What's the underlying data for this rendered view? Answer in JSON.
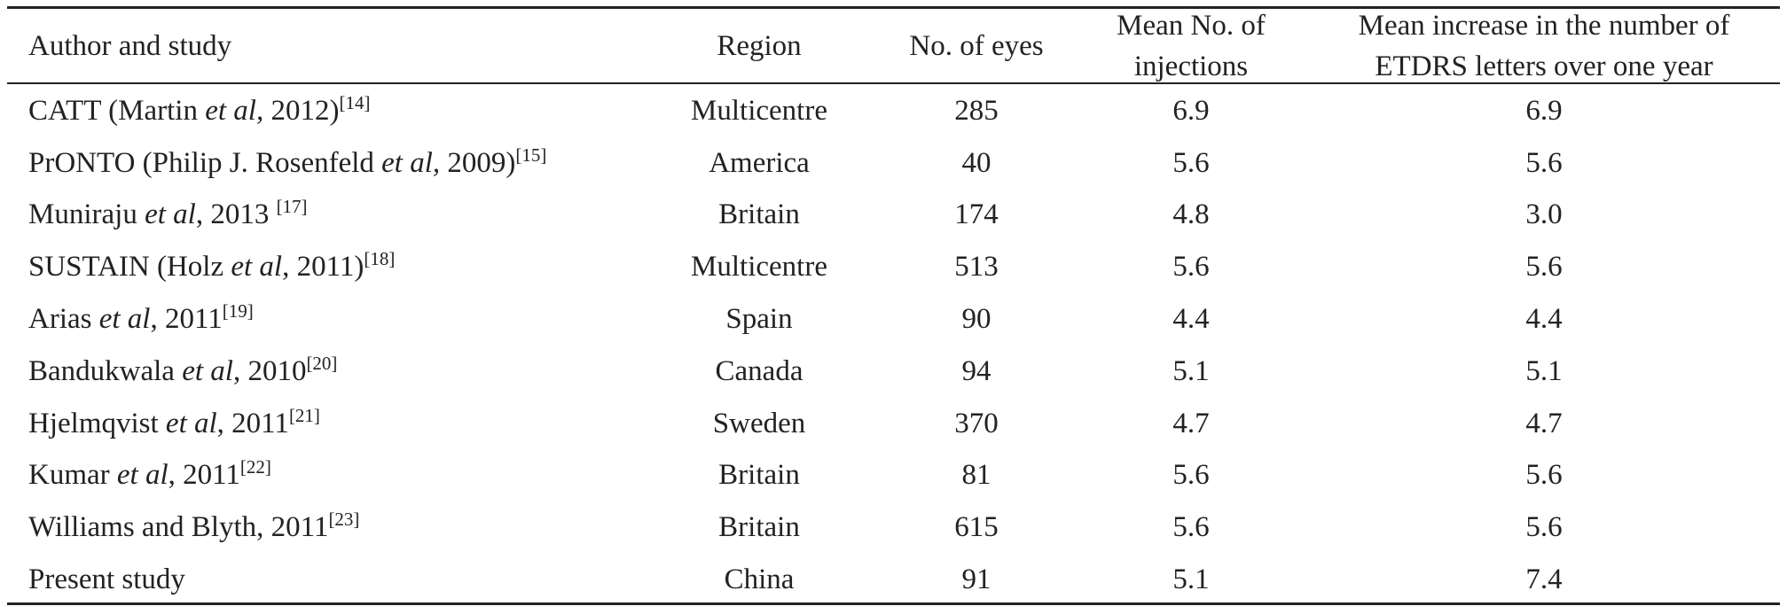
{
  "table": {
    "header": [
      [
        "Author and study"
      ],
      [
        "Region"
      ],
      [
        "No. of eyes"
      ],
      [
        "Mean No. of",
        "injections"
      ],
      [
        "Mean increase in the number of",
        "ETDRS letters over one year"
      ]
    ],
    "rows": [
      {
        "author": [
          "CATT (Martin ",
          "et al,",
          " 2012)"
        ],
        "ref": "[14]",
        "cells": [
          "Multicentre",
          "285",
          "6.9",
          "6.9"
        ]
      },
      {
        "author": [
          "PrONTO (Philip J. Rosenfeld ",
          "et al,",
          " 2009)"
        ],
        "ref": "[15]",
        "cells": [
          "America",
          "40",
          "5.6",
          "5.6"
        ]
      },
      {
        "author": [
          "Muniraju ",
          "et al",
          ", 2013 "
        ],
        "ref": "[17]",
        "cells": [
          "Britain",
          "174",
          "4.8",
          "3.0"
        ]
      },
      {
        "author": [
          "SUSTAIN (Holz ",
          "et al",
          ", 2011)"
        ],
        "ref": "[18]",
        "cells": [
          "Multicentre",
          "513",
          "5.6",
          "5.6"
        ]
      },
      {
        "author": [
          "Arias ",
          "et al",
          ", 2011"
        ],
        "ref": "[19]",
        "cells": [
          "Spain",
          "90",
          "4.4",
          "4.4"
        ]
      },
      {
        "author": [
          "Bandukwala ",
          "et al",
          ", 2010"
        ],
        "ref": "[20]",
        "cells": [
          "Canada",
          "94",
          "5.1",
          "5.1"
        ]
      },
      {
        "author": [
          "Hjelmqvist ",
          "et al",
          ", 2011"
        ],
        "ref": "[21]",
        "cells": [
          "Sweden",
          "370",
          "4.7",
          "4.7"
        ]
      },
      {
        "author": [
          "Kumar ",
          "et al",
          ", 2011"
        ],
        "ref": "[22]",
        "cells": [
          "Britain",
          "81",
          "5.6",
          "5.6"
        ]
      },
      {
        "author": [
          "Williams and Blyth, 2011"
        ],
        "ref": "[23]",
        "cells": [
          "Britain",
          "615",
          "5.6",
          "5.6"
        ]
      },
      {
        "author": [
          "Present study"
        ],
        "cells": [
          "China",
          "91",
          "5.1",
          "7.4"
        ]
      }
    ]
  }
}
